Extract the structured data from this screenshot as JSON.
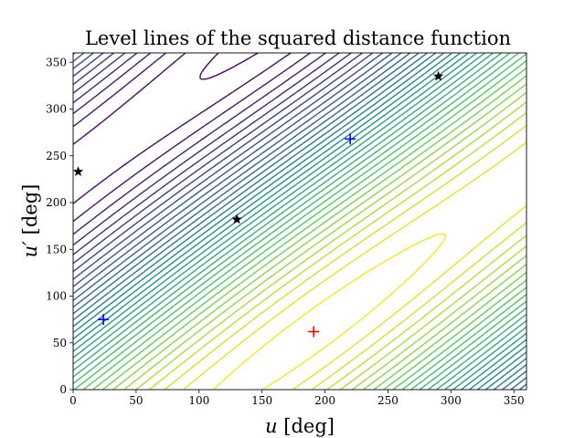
{
  "chart_data": {
    "type": "contour",
    "title": "Level lines of the squared distance function",
    "xlabel_symbol": "u",
    "xlabel_unit": "[deg]",
    "ylabel_symbol": "u′",
    "ylabel_unit": "[deg]",
    "xlim": [
      0,
      360
    ],
    "ylim": [
      0,
      360
    ],
    "xticks": [
      0,
      50,
      100,
      150,
      200,
      250,
      300,
      350
    ],
    "yticks": [
      0,
      50,
      100,
      150,
      200,
      250,
      300,
      350
    ],
    "grid": false,
    "colormap": "viridis",
    "minimum": {
      "x": 191,
      "y": 62,
      "marker": "plus",
      "color": "#ff0000"
    },
    "plus_markers": [
      {
        "x": 24,
        "y": 75,
        "color": "#0000ff"
      },
      {
        "x": 220,
        "y": 268,
        "color": "#0000ff"
      }
    ],
    "star_markers": [
      {
        "x": 4,
        "y": 233,
        "color": "#000000"
      },
      {
        "x": 130,
        "y": 182,
        "color": "#000000"
      },
      {
        "x": 290,
        "y": 335,
        "color": "#000000"
      }
    ]
  }
}
